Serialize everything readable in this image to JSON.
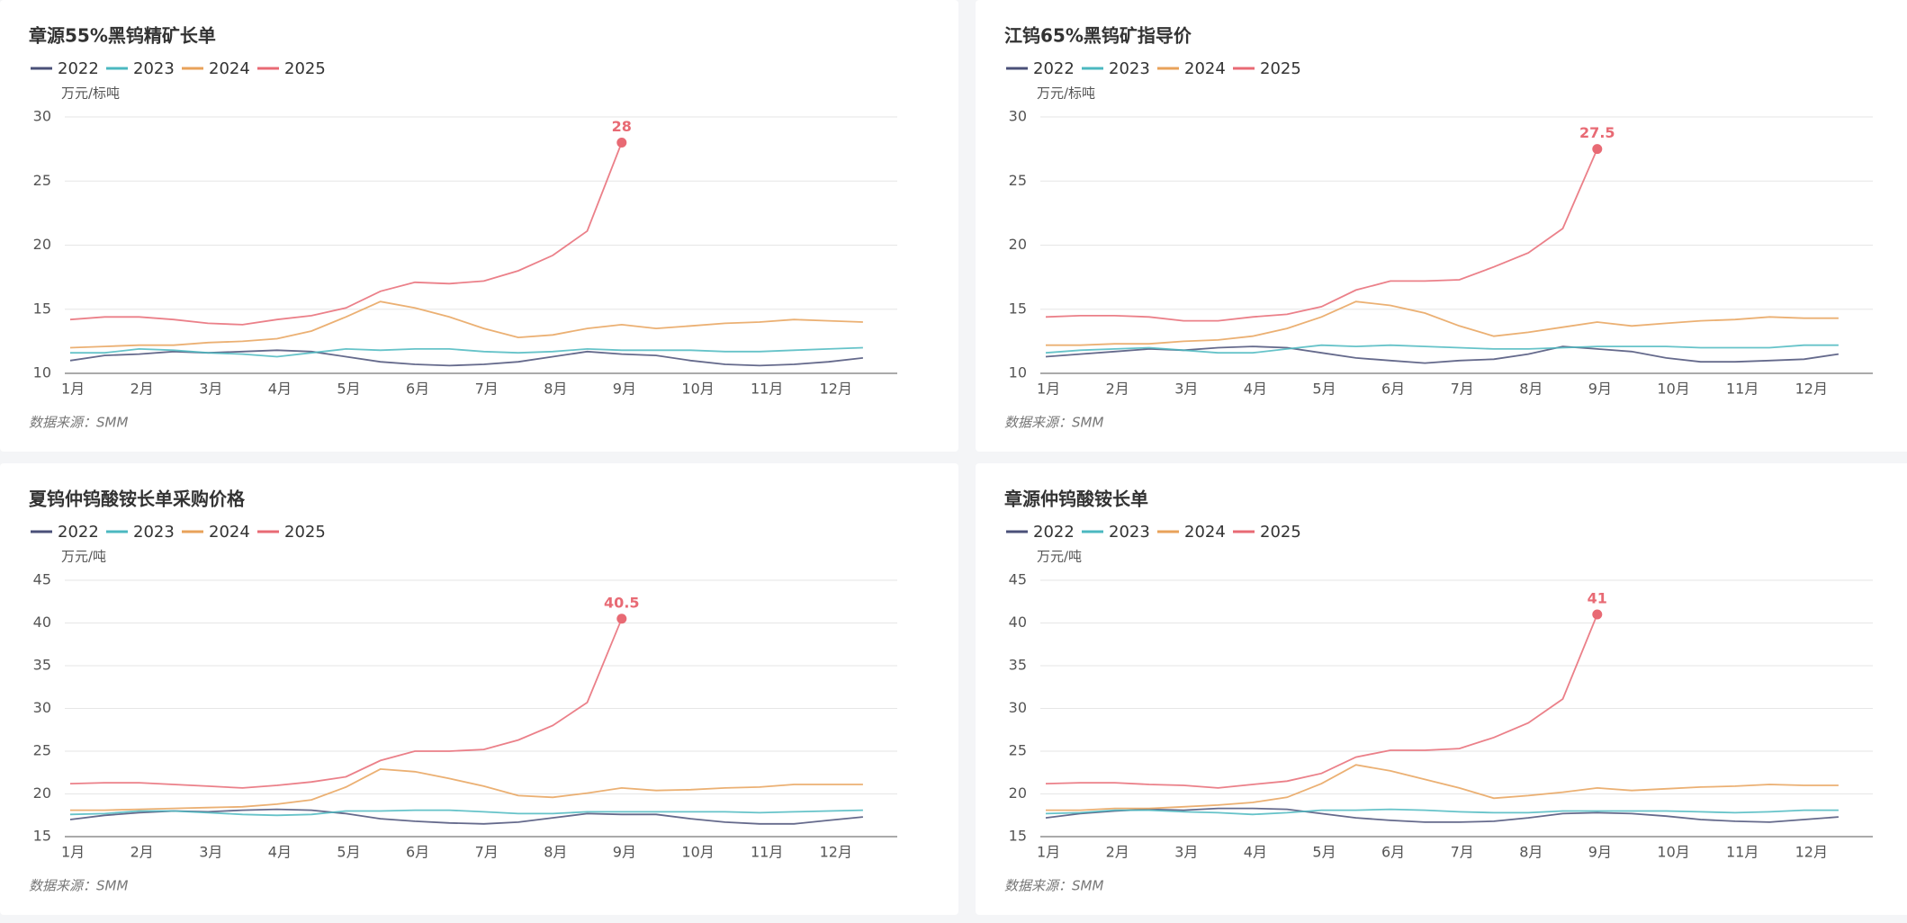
{
  "chart_data": [
    {
      "type": "line",
      "title": "章源55%黑钨精矿长单",
      "y_label": "万元/标吨",
      "source": "数据来源：SMM",
      "grid": true,
      "legend": "top-left",
      "categories": [
        "1月",
        null,
        "2月",
        null,
        "3月",
        null,
        "4月",
        null,
        "5月",
        null,
        "6月",
        null,
        "7月",
        null,
        "8月",
        null,
        "9月",
        null,
        "10月",
        null,
        "11月",
        null,
        "12月",
        null
      ],
      "ylim": [
        10,
        30
      ],
      "yticks": [
        10,
        15,
        20,
        25,
        30
      ],
      "series": [
        {
          "name": "2022",
          "color": "#4a5078",
          "values": [
            11.0,
            11.4,
            11.5,
            11.7,
            11.6,
            11.7,
            11.8,
            11.7,
            11.3,
            10.9,
            10.7,
            10.6,
            10.7,
            10.9,
            11.3,
            11.7,
            11.5,
            11.4,
            11.0,
            10.7,
            10.6,
            10.7,
            10.9,
            11.2
          ]
        },
        {
          "name": "2023",
          "color": "#4bb8c0",
          "values": [
            11.6,
            11.6,
            11.9,
            11.8,
            11.6,
            11.5,
            11.3,
            11.6,
            11.9,
            11.8,
            11.9,
            11.9,
            11.7,
            11.6,
            11.7,
            11.9,
            11.8,
            11.8,
            11.8,
            11.7,
            11.7,
            11.8,
            11.9,
            12.0
          ]
        },
        {
          "name": "2024",
          "color": "#e8a25a",
          "values": [
            12.0,
            12.1,
            12.2,
            12.2,
            12.4,
            12.5,
            12.7,
            13.3,
            14.4,
            15.6,
            15.1,
            14.4,
            13.5,
            12.8,
            13.0,
            13.5,
            13.8,
            13.5,
            13.7,
            13.9,
            14.0,
            14.2,
            14.1,
            14.0
          ]
        },
        {
          "name": "2025",
          "color": "#e86a74",
          "label_last": true,
          "values": [
            14.2,
            14.4,
            14.4,
            14.2,
            13.9,
            13.8,
            14.2,
            14.5,
            15.1,
            16.4,
            17.1,
            17.0,
            17.2,
            18.0,
            19.2,
            21.1,
            28,
            null,
            null,
            null,
            null,
            null,
            null,
            null
          ]
        }
      ]
    },
    {
      "type": "line",
      "title": "江钨65%黑钨矿指导价",
      "y_label": "万元/标吨",
      "source": "数据来源：SMM",
      "grid": true,
      "legend": "top-left",
      "categories": [
        "1月",
        null,
        "2月",
        null,
        "3月",
        null,
        "4月",
        null,
        "5月",
        null,
        "6月",
        null,
        "7月",
        null,
        "8月",
        null,
        "9月",
        null,
        "10月",
        null,
        "11月",
        null,
        "12月",
        null
      ],
      "ylim": [
        10,
        30
      ],
      "yticks": [
        10,
        15,
        20,
        25,
        30
      ],
      "series": [
        {
          "name": "2022",
          "color": "#4a5078",
          "values": [
            11.3,
            11.5,
            11.7,
            11.9,
            11.8,
            12.0,
            12.1,
            12.0,
            11.6,
            11.2,
            11.0,
            10.8,
            11.0,
            11.1,
            11.5,
            12.1,
            11.9,
            11.7,
            11.2,
            10.9,
            10.9,
            11.0,
            11.1,
            11.5
          ]
        },
        {
          "name": "2023",
          "color": "#4bb8c0",
          "values": [
            11.6,
            11.8,
            11.9,
            12.0,
            11.8,
            11.6,
            11.6,
            11.9,
            12.2,
            12.1,
            12.2,
            12.1,
            12.0,
            11.9,
            11.9,
            12.0,
            12.1,
            12.1,
            12.1,
            12.0,
            12.0,
            12.0,
            12.2,
            12.2
          ]
        },
        {
          "name": "2024",
          "color": "#e8a25a",
          "values": [
            12.2,
            12.2,
            12.3,
            12.3,
            12.5,
            12.6,
            12.9,
            13.5,
            14.4,
            15.6,
            15.3,
            14.7,
            13.7,
            12.9,
            13.2,
            13.6,
            14.0,
            13.7,
            13.9,
            14.1,
            14.2,
            14.4,
            14.3,
            14.3
          ]
        },
        {
          "name": "2025",
          "color": "#e86a74",
          "label_last": true,
          "values": [
            14.4,
            14.5,
            14.5,
            14.4,
            14.1,
            14.1,
            14.4,
            14.6,
            15.2,
            16.5,
            17.2,
            17.2,
            17.3,
            18.3,
            19.4,
            21.3,
            27.5,
            null,
            null,
            null,
            null,
            null,
            null,
            null
          ]
        }
      ]
    },
    {
      "type": "line",
      "title": "夏钨仲钨酸铵长单采购价格",
      "y_label": "万元/吨",
      "source": "数据来源：SMM",
      "grid": true,
      "legend": "top-left",
      "categories": [
        "1月",
        null,
        "2月",
        null,
        "3月",
        null,
        "4月",
        null,
        "5月",
        null,
        "6月",
        null,
        "7月",
        null,
        "8月",
        null,
        "9月",
        null,
        "10月",
        null,
        "11月",
        null,
        "12月",
        null
      ],
      "ylim": [
        15,
        45
      ],
      "yticks": [
        15,
        20,
        25,
        30,
        35,
        40,
        45
      ],
      "series": [
        {
          "name": "2022",
          "color": "#4a5078",
          "values": [
            17.0,
            17.5,
            17.8,
            18.0,
            17.9,
            18.1,
            18.2,
            18.1,
            17.7,
            17.1,
            16.8,
            16.6,
            16.5,
            16.7,
            17.2,
            17.7,
            17.6,
            17.6,
            17.1,
            16.7,
            16.5,
            16.5,
            16.9,
            17.3
          ]
        },
        {
          "name": "2023",
          "color": "#4bb8c0",
          "values": [
            17.6,
            17.7,
            18.0,
            18.0,
            17.8,
            17.6,
            17.5,
            17.6,
            18.0,
            18.0,
            18.1,
            18.1,
            17.9,
            17.7,
            17.7,
            17.9,
            17.9,
            17.9,
            17.9,
            17.9,
            17.8,
            17.9,
            18.0,
            18.1
          ]
        },
        {
          "name": "2024",
          "color": "#e8a25a",
          "values": [
            18.1,
            18.1,
            18.2,
            18.3,
            18.4,
            18.5,
            18.8,
            19.3,
            20.8,
            22.9,
            22.6,
            21.8,
            20.9,
            19.8,
            19.6,
            20.1,
            20.7,
            20.4,
            20.5,
            20.7,
            20.8,
            21.1,
            21.1,
            21.1
          ]
        },
        {
          "name": "2025",
          "color": "#e86a74",
          "label_last": true,
          "values": [
            21.2,
            21.3,
            21.3,
            21.1,
            20.9,
            20.7,
            21.0,
            21.4,
            22.0,
            23.9,
            25.0,
            25.0,
            25.2,
            26.3,
            28.0,
            30.7,
            40.5,
            null,
            null,
            null,
            null,
            null,
            null,
            null
          ]
        }
      ]
    },
    {
      "type": "line",
      "title": "章源仲钨酸铵长单",
      "y_label": "万元/吨",
      "source": "数据来源：SMM",
      "grid": true,
      "legend": "top-left",
      "categories": [
        "1月",
        null,
        "2月",
        null,
        "3月",
        null,
        "4月",
        null,
        "5月",
        null,
        "6月",
        null,
        "7月",
        null,
        "8月",
        null,
        "9月",
        null,
        "10月",
        null,
        "11月",
        null,
        "12月",
        null
      ],
      "ylim": [
        15,
        45
      ],
      "yticks": [
        15,
        20,
        25,
        30,
        35,
        40,
        45
      ],
      "series": [
        {
          "name": "2022",
          "color": "#4a5078",
          "values": [
            17.2,
            17.7,
            18.0,
            18.2,
            18.1,
            18.3,
            18.3,
            18.2,
            17.7,
            17.2,
            16.9,
            16.7,
            16.7,
            16.8,
            17.2,
            17.7,
            17.8,
            17.7,
            17.4,
            17.0,
            16.8,
            16.7,
            17.0,
            17.3
          ]
        },
        {
          "name": "2023",
          "color": "#4bb8c0",
          "values": [
            17.7,
            17.8,
            18.1,
            18.1,
            17.9,
            17.8,
            17.6,
            17.8,
            18.1,
            18.1,
            18.2,
            18.1,
            17.9,
            17.8,
            17.8,
            18.0,
            18.0,
            18.0,
            18.0,
            17.9,
            17.8,
            17.9,
            18.1,
            18.1
          ]
        },
        {
          "name": "2024",
          "color": "#e8a25a",
          "values": [
            18.1,
            18.1,
            18.3,
            18.3,
            18.5,
            18.7,
            19.0,
            19.6,
            21.2,
            23.4,
            22.7,
            21.7,
            20.7,
            19.5,
            19.8,
            20.2,
            20.7,
            20.4,
            20.6,
            20.8,
            20.9,
            21.1,
            21.0,
            21.0
          ]
        },
        {
          "name": "2025",
          "color": "#e86a74",
          "label_last": true,
          "values": [
            21.2,
            21.3,
            21.3,
            21.1,
            21.0,
            20.7,
            21.1,
            21.5,
            22.4,
            24.3,
            25.1,
            25.1,
            25.3,
            26.6,
            28.3,
            31.1,
            41,
            null,
            null,
            null,
            null,
            null,
            null,
            null
          ]
        }
      ]
    }
  ]
}
